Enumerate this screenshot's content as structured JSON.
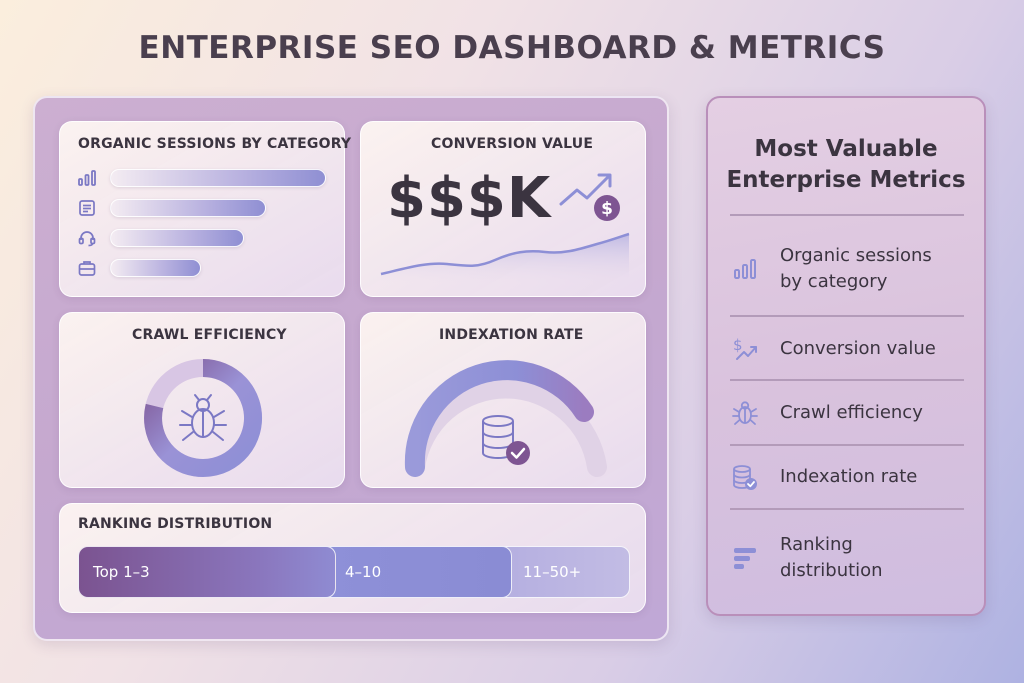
{
  "page": {
    "title": "ENTERPRISE SEO DASHBOARD & METRICS"
  },
  "dashboard": {
    "sessions": {
      "title": "ORGANIC SESSIONS BY CATEGORY",
      "bars": [
        {
          "icon": "bar-chart-icon",
          "value": 1.0
        },
        {
          "icon": "document-icon",
          "value": 0.72
        },
        {
          "icon": "headset-icon",
          "value": 0.62
        },
        {
          "icon": "briefcase-icon",
          "value": 0.42
        }
      ]
    },
    "conversion": {
      "title": "CONVERSION VALUE",
      "value": "$$$K",
      "icon": "trend-up-dollar-icon"
    },
    "crawl": {
      "title": "CRAWL EFFICIENCY",
      "icon": "bug-icon"
    },
    "indexation": {
      "title": "INDEXATION RATE",
      "icon": "database-check-icon"
    },
    "ranking": {
      "title": "RANKING DISTRIBUTION",
      "segments": [
        {
          "label": "Top 1–3",
          "color": "#7e5592"
        },
        {
          "label": "4–10",
          "color": "#8d8fd6"
        },
        {
          "label": "11–50+",
          "color": "#b9b4de"
        }
      ]
    }
  },
  "panel": {
    "title_line1": "Most Valuable",
    "title_line2": "Enterprise Metrics",
    "items": [
      {
        "line1": "Organic sessions",
        "line2": "by category",
        "icon": "bar-chart-icon"
      },
      {
        "line1": "Conversion value",
        "line2": "",
        "icon": "dollar-trend-icon"
      },
      {
        "line1": "Crawl efficiency",
        "line2": "",
        "icon": "bug-icon"
      },
      {
        "line1": "Indexation rate",
        "line2": "",
        "icon": "database-check-icon"
      },
      {
        "line1": "Ranking",
        "line2": "distribution",
        "icon": "list-bars-icon"
      }
    ]
  },
  "colors": {
    "accent_purple": "#7e5592",
    "accent_blue": "#8d8fd6",
    "accent_light": "#b9b4de",
    "text": "#3b3440"
  }
}
